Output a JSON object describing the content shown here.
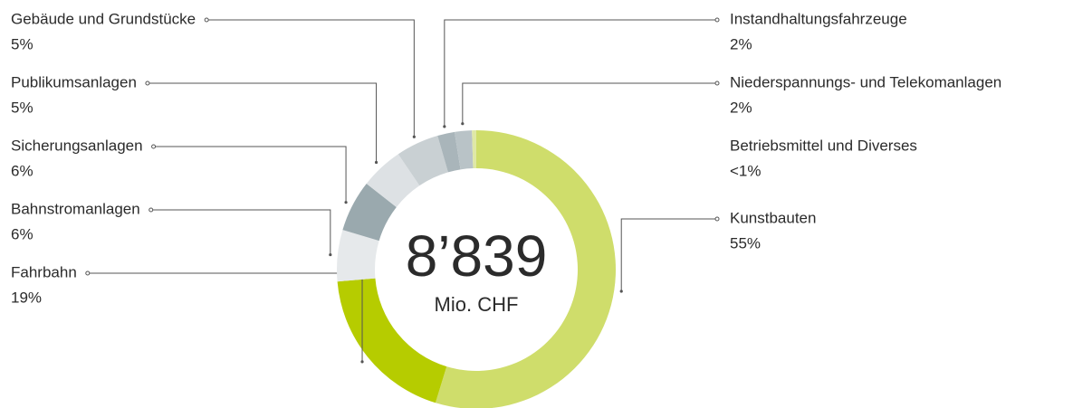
{
  "chart_data": {
    "type": "donut",
    "center_value": "8’839",
    "center_unit": "Mio. CHF",
    "categories": [
      "Kunstbauten",
      "Fahrbahn",
      "Bahnstromanlagen",
      "Sicherungsanlagen",
      "Publikumsanlagen",
      "Gebäude und Grundstücke",
      "Instandhaltungsfahrzeuge",
      "Niederspannungs- und Telekomanlagen",
      "Betriebsmittel und Diverses"
    ],
    "values": [
      55,
      19,
      6,
      6,
      5,
      5,
      2,
      2,
      0.5
    ],
    "value_labels": [
      "55%",
      "19%",
      "6%",
      "6%",
      "5%",
      "5%",
      "2%",
      "2%",
      "<1%"
    ],
    "colors": [
      "#cfdd6b",
      "#b6cc00",
      "#e6e9eb",
      "#9aa9ae",
      "#dde1e4",
      "#c9d0d3",
      "#a9b5ba",
      "#b9c3c7",
      "#dfe8a6"
    ]
  }
}
